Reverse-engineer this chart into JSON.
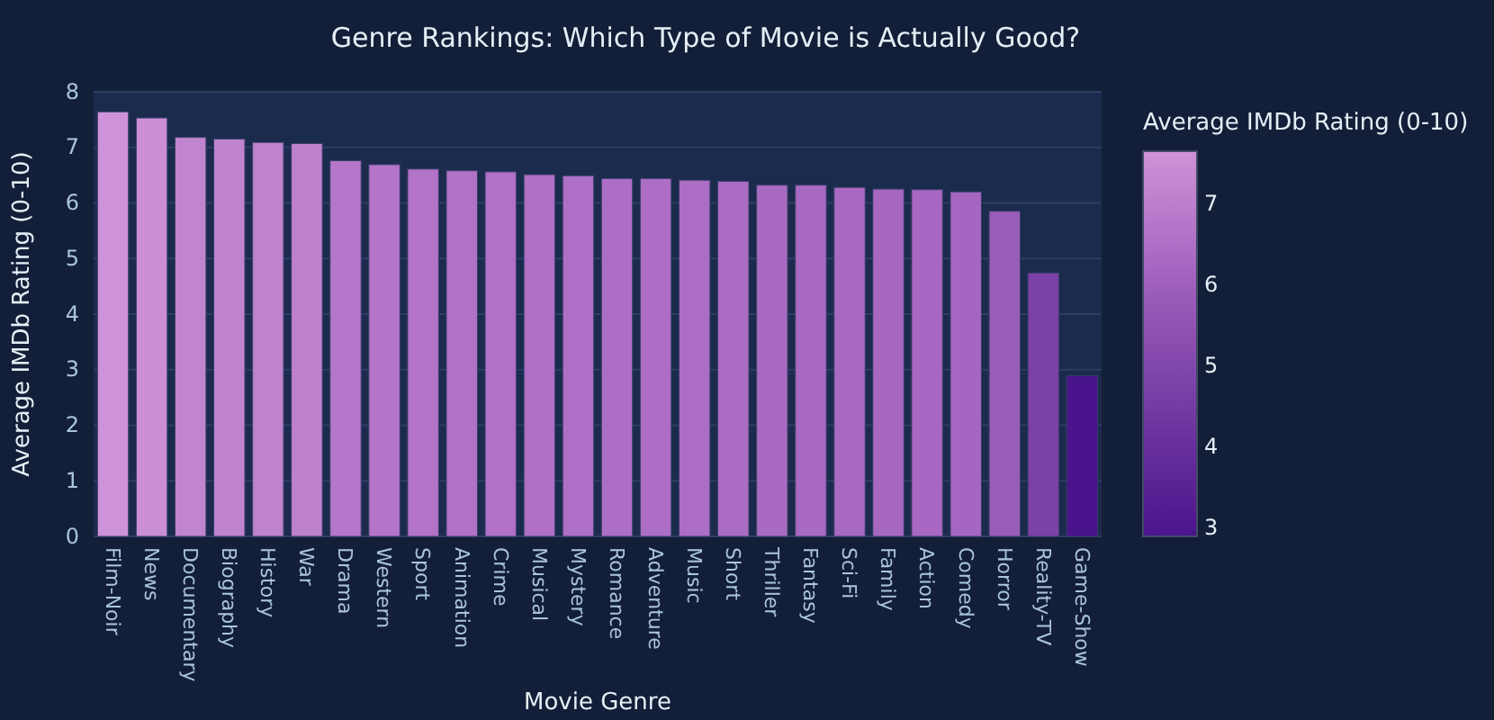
{
  "chart_data": {
    "type": "bar",
    "title": "Genre Rankings: Which Type of Movie is Actually Good?",
    "xlabel": "Movie Genre",
    "ylabel": "Average IMDb Rating (0-10)",
    "clabel": "Average IMDb Rating (0-10)",
    "categories": [
      "Film-Noir",
      "News",
      "Documentary",
      "Biography",
      "History",
      "War",
      "Drama",
      "Western",
      "Sport",
      "Animation",
      "Crime",
      "Musical",
      "Mystery",
      "Romance",
      "Adventure",
      "Music",
      "Short",
      "Thriller",
      "Fantasy",
      "Sci-Fi",
      "Family",
      "Action",
      "Comedy",
      "Horror",
      "Reality-TV",
      "Game-Show"
    ],
    "values": [
      7.64,
      7.53,
      7.18,
      7.15,
      7.09,
      7.07,
      6.76,
      6.69,
      6.61,
      6.58,
      6.56,
      6.51,
      6.49,
      6.44,
      6.44,
      6.41,
      6.39,
      6.32,
      6.32,
      6.28,
      6.25,
      6.24,
      6.2,
      5.85,
      4.74,
      2.89
    ],
    "colors": [
      "#ce93d8",
      "#cb8fd6",
      "#c185d0",
      "#c084cf",
      "#be82ce",
      "#be81ce",
      "#b677ca",
      "#b475c9",
      "#b273c8",
      "#b172c7",
      "#b071c7",
      "#af70c6",
      "#ae6fc6",
      "#ad6ec5",
      "#ad6ec5",
      "#ac6dc5",
      "#ab6cc4",
      "#a96ac3",
      "#a96ac3",
      "#a869c2",
      "#a768c2",
      "#a767c2",
      "#a566c1",
      "#9a5cb9",
      "#7b41a7",
      "#4a148c"
    ],
    "ylim": [
      0,
      8
    ],
    "yticks": [
      0,
      1,
      2,
      3,
      4,
      5,
      6,
      7,
      8
    ],
    "grid": "y",
    "clim": [
      2.89,
      7.64
    ],
    "cticks": [
      3,
      4,
      5,
      6,
      7
    ]
  }
}
